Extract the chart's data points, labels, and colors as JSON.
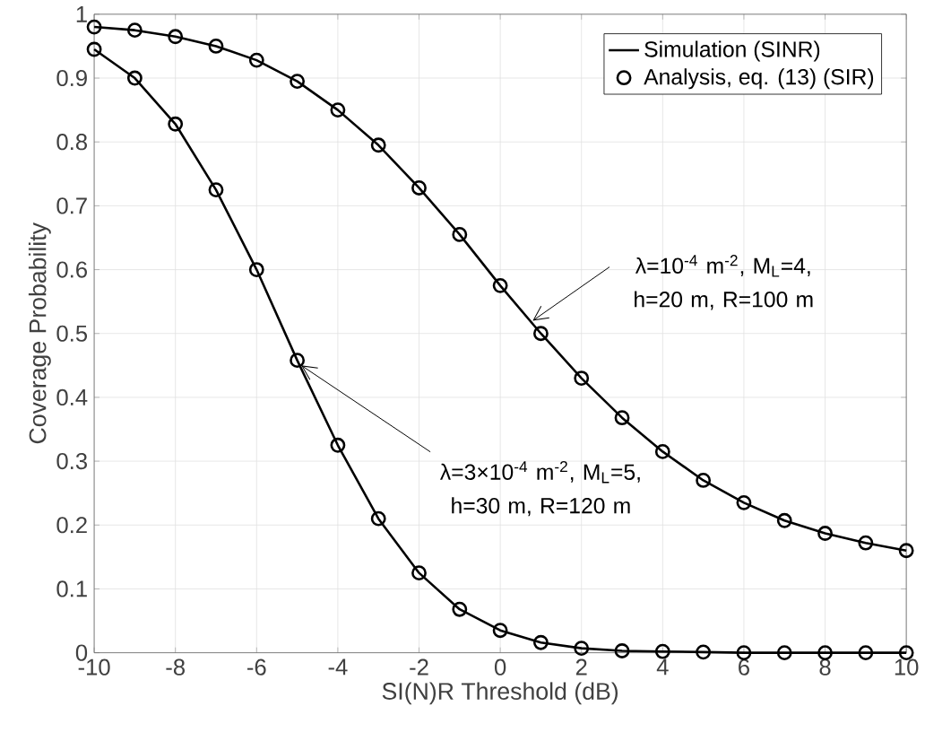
{
  "chart_data": {
    "type": "line",
    "xlabel": "SI(N)R Threshold (dB)",
    "ylabel": "Coverage Probability",
    "x": [
      -10,
      -9,
      -8,
      -7,
      -6,
      -5,
      -4,
      -3,
      -2,
      -1,
      0,
      1,
      2,
      3,
      4,
      5,
      6,
      7,
      8,
      9,
      10
    ],
    "series": [
      {
        "name": "Simulation (SINR)",
        "color": "#000000",
        "line_style": "solid",
        "values": [
          0.98,
          0.975,
          0.965,
          0.95,
          0.928,
          0.895,
          0.85,
          0.795,
          0.728,
          0.655,
          0.575,
          0.5,
          0.43,
          0.368,
          0.315,
          0.27,
          0.235,
          0.207,
          0.187,
          0.172,
          0.16
        ]
      },
      {
        "color": "#000000",
        "line_style": "solid",
        "values": [
          0.945,
          0.9,
          0.828,
          0.725,
          0.6,
          0.458,
          0.325,
          0.21,
          0.125,
          0.068,
          0.035,
          0.016,
          0.007,
          0.003,
          0.002,
          0.001,
          0,
          0,
          0,
          0,
          0
        ]
      },
      {
        "name": "Analysis, eq. (13) (SIR)",
        "type": "scatter",
        "color": "#000000",
        "marker": "circle",
        "values": [
          0.98,
          0.975,
          0.965,
          0.95,
          0.928,
          0.895,
          0.85,
          0.795,
          0.728,
          0.655,
          0.575,
          0.5,
          0.43,
          0.368,
          0.315,
          0.27,
          0.235,
          0.207,
          0.187,
          0.172,
          0.16
        ]
      },
      {
        "type": "scatter",
        "color": "#000000",
        "marker": "circle",
        "values": [
          0.945,
          0.9,
          0.828,
          0.725,
          0.6,
          0.458,
          0.325,
          0.21,
          0.125,
          0.068,
          0.035,
          0.016,
          0.007,
          0.003,
          0.002,
          0.001,
          0,
          0,
          0,
          0,
          0
        ]
      }
    ],
    "annotations": [
      {
        "text": "λ=10$^{-4}$ m$^{-2}$, M$_{L}$=4, h=20 m, R=100 m",
        "x": 0.8,
        "y": 0.52
      },
      {
        "text": "λ=3×10$^{-4}$ m$^{-2}$, M$_{L}$=5, h=30 m, R=120 m",
        "x": -4.9,
        "y": 0.45
      }
    ],
    "xlim": [
      -10,
      10
    ],
    "ylim": [
      0,
      1
    ],
    "xticks": [
      -10,
      -8,
      -6,
      -4,
      -2,
      0,
      2,
      4,
      6,
      8,
      10
    ],
    "yticks": [
      0,
      0.1,
      0.2,
      0.3,
      0.4,
      0.5,
      0.6,
      0.7,
      0.8,
      0.9,
      1
    ],
    "grid": true,
    "legend": "top right"
  }
}
